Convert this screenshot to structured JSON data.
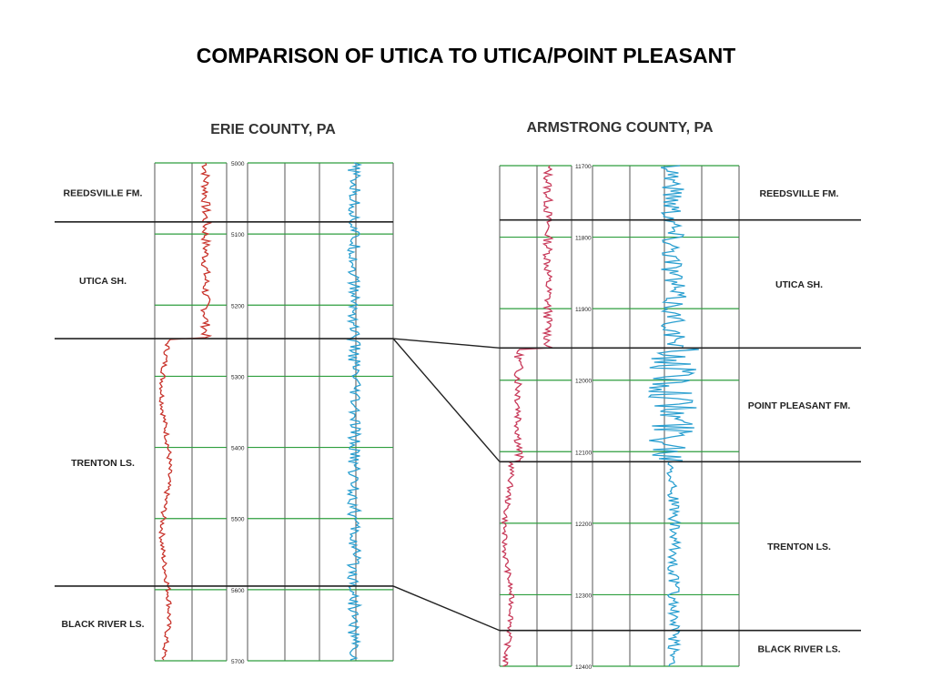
{
  "title": "COMPARISON OF UTICA TO UTICA/POINT PLEASANT",
  "colors": {
    "gamma_trace": "#c8322a",
    "gamma_trace_right": "#c83a5a",
    "resistivity_trace": "#2a9fd0",
    "depth_grid": "#2e9e3e",
    "track_border": "#555555",
    "formation_line": "#222222"
  },
  "wells": [
    {
      "id": "erie",
      "title": "ERIE COUNTY, PA",
      "depth_top": 5000,
      "depth_bottom": 5700,
      "depth_labels": [
        "5000",
        "5100",
        "5200",
        "5300",
        "5400",
        "5500",
        "5600",
        "5700"
      ],
      "formations": [
        {
          "name": "REEDSVILLE FM.",
          "top": 5000,
          "base": 5083
        },
        {
          "name": "UTICA SH.",
          "top": 5083,
          "base": 5247
        },
        {
          "name": "TRENTON LS.",
          "top": 5247,
          "base": 5595
        },
        {
          "name": "BLACK RIVER LS.",
          "top": 5595,
          "base": 5700
        }
      ]
    },
    {
      "id": "armstrong",
      "title": "ARMSTRONG COUNTY, PA",
      "depth_top": 11700,
      "depth_bottom": 12400,
      "depth_labels": [
        "11700",
        "11800",
        "11900",
        "12000",
        "12100",
        "12200",
        "12300",
        "12400"
      ],
      "formations": [
        {
          "name": "REEDSVILLE FM.",
          "top": 11700,
          "base": 11776
        },
        {
          "name": "UTICA SH.",
          "top": 11776,
          "base": 11955
        },
        {
          "name": "POINT PLEASANT FM.",
          "top": 11955,
          "base": 12114
        },
        {
          "name": "TRENTON LS.",
          "top": 12114,
          "base": 12350
        },
        {
          "name": "BLACK RIVER LS.",
          "top": 12350,
          "base": 12400
        }
      ]
    }
  ],
  "correlations": [
    {
      "from": "UTICA SH. base",
      "to": "UTICA SH. base"
    },
    {
      "from": "UTICA SH. base",
      "to": "POINT PLEASANT FM. base"
    },
    {
      "from": "TRENTON LS. base",
      "to": "TRENTON LS. base"
    }
  ]
}
